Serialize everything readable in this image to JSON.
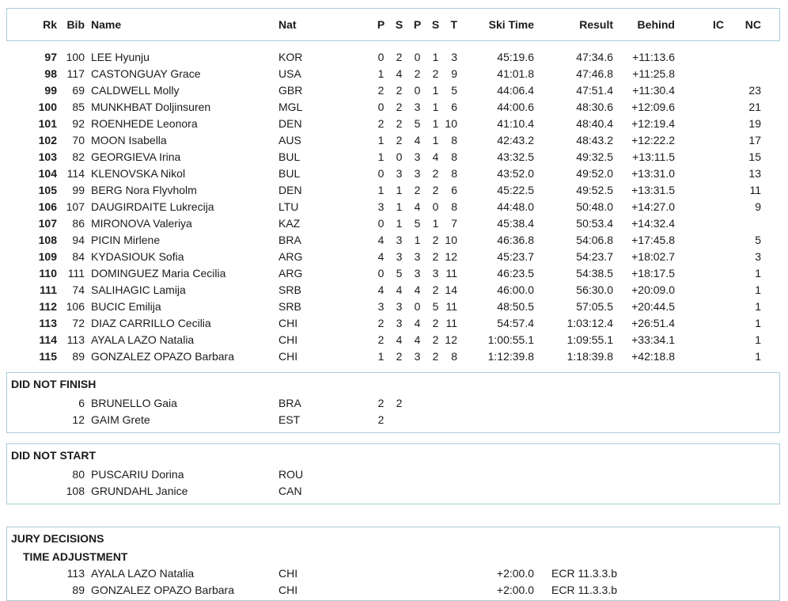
{
  "colors": {
    "border": "#a9cdd9",
    "text": "#1b1b1b"
  },
  "table": {
    "headers": {
      "rk": "Rk",
      "bib": "Bib",
      "name": "Name",
      "nat": "Nat",
      "p1": "P",
      "s1": "S",
      "p2": "P",
      "s2": "S",
      "t": "T",
      "ski_time": "Ski Time",
      "result": "Result",
      "behind": "Behind",
      "ic": "IC",
      "nc": "NC"
    },
    "rows": [
      {
        "rk": "97",
        "bib": "100",
        "name": "LEE Hyunju",
        "nat": "KOR",
        "p1": "0",
        "s1": "2",
        "p2": "0",
        "s2": "1",
        "t": "3",
        "ski_time": "45:19.6",
        "result": "47:34.6",
        "behind": "+11:13.6",
        "ic": "",
        "nc": ""
      },
      {
        "rk": "98",
        "bib": "117",
        "name": "CASTONGUAY Grace",
        "nat": "USA",
        "p1": "1",
        "s1": "4",
        "p2": "2",
        "s2": "2",
        "t": "9",
        "ski_time": "41:01.8",
        "result": "47:46.8",
        "behind": "+11:25.8",
        "ic": "",
        "nc": ""
      },
      {
        "rk": "99",
        "bib": "69",
        "name": "CALDWELL Molly",
        "nat": "GBR",
        "p1": "2",
        "s1": "2",
        "p2": "0",
        "s2": "1",
        "t": "5",
        "ski_time": "44:06.4",
        "result": "47:51.4",
        "behind": "+11:30.4",
        "ic": "",
        "nc": "23"
      },
      {
        "rk": "100",
        "bib": "85",
        "name": "MUNKHBAT Doljinsuren",
        "nat": "MGL",
        "p1": "0",
        "s1": "2",
        "p2": "3",
        "s2": "1",
        "t": "6",
        "ski_time": "44:00.6",
        "result": "48:30.6",
        "behind": "+12:09.6",
        "ic": "",
        "nc": "21"
      },
      {
        "rk": "101",
        "bib": "92",
        "name": "ROENHEDE Leonora",
        "nat": "DEN",
        "p1": "2",
        "s1": "2",
        "p2": "5",
        "s2": "1",
        "t": "10",
        "ski_time": "41:10.4",
        "result": "48:40.4",
        "behind": "+12:19.4",
        "ic": "",
        "nc": "19"
      },
      {
        "rk": "102",
        "bib": "70",
        "name": "MOON Isabella",
        "nat": "AUS",
        "p1": "1",
        "s1": "2",
        "p2": "4",
        "s2": "1",
        "t": "8",
        "ski_time": "42:43.2",
        "result": "48:43.2",
        "behind": "+12:22.2",
        "ic": "",
        "nc": "17"
      },
      {
        "rk": "103",
        "bib": "82",
        "name": "GEORGIEVA Irina",
        "nat": "BUL",
        "p1": "1",
        "s1": "0",
        "p2": "3",
        "s2": "4",
        "t": "8",
        "ski_time": "43:32.5",
        "result": "49:32.5",
        "behind": "+13:11.5",
        "ic": "",
        "nc": "15"
      },
      {
        "rk": "104",
        "bib": "114",
        "name": "KLENOVSKA Nikol",
        "nat": "BUL",
        "p1": "0",
        "s1": "3",
        "p2": "3",
        "s2": "2",
        "t": "8",
        "ski_time": "43:52.0",
        "result": "49:52.0",
        "behind": "+13:31.0",
        "ic": "",
        "nc": "13"
      },
      {
        "rk": "105",
        "bib": "99",
        "name": "BERG Nora Flyvholm",
        "nat": "DEN",
        "p1": "1",
        "s1": "1",
        "p2": "2",
        "s2": "2",
        "t": "6",
        "ski_time": "45:22.5",
        "result": "49:52.5",
        "behind": "+13:31.5",
        "ic": "",
        "nc": "11"
      },
      {
        "rk": "106",
        "bib": "107",
        "name": "DAUGIRDAITE Lukrecija",
        "nat": "LTU",
        "p1": "3",
        "s1": "1",
        "p2": "4",
        "s2": "0",
        "t": "8",
        "ski_time": "44:48.0",
        "result": "50:48.0",
        "behind": "+14:27.0",
        "ic": "",
        "nc": "9"
      },
      {
        "rk": "107",
        "bib": "86",
        "name": "MIRONOVA Valeriya",
        "nat": "KAZ",
        "p1": "0",
        "s1": "1",
        "p2": "5",
        "s2": "1",
        "t": "7",
        "ski_time": "45:38.4",
        "result": "50:53.4",
        "behind": "+14:32.4",
        "ic": "",
        "nc": ""
      },
      {
        "rk": "108",
        "bib": "94",
        "name": "PICIN Mirlene",
        "nat": "BRA",
        "p1": "4",
        "s1": "3",
        "p2": "1",
        "s2": "2",
        "t": "10",
        "ski_time": "46:36.8",
        "result": "54:06.8",
        "behind": "+17:45.8",
        "ic": "",
        "nc": "5"
      },
      {
        "rk": "109",
        "bib": "84",
        "name": "KYDASIOUK Sofia",
        "nat": "ARG",
        "p1": "4",
        "s1": "3",
        "p2": "3",
        "s2": "2",
        "t": "12",
        "ski_time": "45:23.7",
        "result": "54:23.7",
        "behind": "+18:02.7",
        "ic": "",
        "nc": "3"
      },
      {
        "rk": "110",
        "bib": "111",
        "name": "DOMINGUEZ Maria Cecilia",
        "nat": "ARG",
        "p1": "0",
        "s1": "5",
        "p2": "3",
        "s2": "3",
        "t": "11",
        "ski_time": "46:23.5",
        "result": "54:38.5",
        "behind": "+18:17.5",
        "ic": "",
        "nc": "1"
      },
      {
        "rk": "111",
        "bib": "74",
        "name": "SALIHAGIC Lamija",
        "nat": "SRB",
        "p1": "4",
        "s1": "4",
        "p2": "4",
        "s2": "2",
        "t": "14",
        "ski_time": "46:00.0",
        "result": "56:30.0",
        "behind": "+20:09.0",
        "ic": "",
        "nc": "1"
      },
      {
        "rk": "112",
        "bib": "106",
        "name": "BUCIC Emilija",
        "nat": "SRB",
        "p1": "3",
        "s1": "3",
        "p2": "0",
        "s2": "5",
        "t": "11",
        "ski_time": "48:50.5",
        "result": "57:05.5",
        "behind": "+20:44.5",
        "ic": "",
        "nc": "1"
      },
      {
        "rk": "113",
        "bib": "72",
        "name": "DIAZ CARRILLO Cecilia",
        "nat": "CHI",
        "p1": "2",
        "s1": "3",
        "p2": "4",
        "s2": "2",
        "t": "11",
        "ski_time": "54:57.4",
        "result": "1:03:12.4",
        "behind": "+26:51.4",
        "ic": "",
        "nc": "1"
      },
      {
        "rk": "114",
        "bib": "113",
        "name": "AYALA LAZO Natalia",
        "nat": "CHI",
        "p1": "2",
        "s1": "4",
        "p2": "4",
        "s2": "2",
        "t": "12",
        "ski_time": "1:00:55.1",
        "result": "1:09:55.1",
        "behind": "+33:34.1",
        "ic": "",
        "nc": "1"
      },
      {
        "rk": "115",
        "bib": "89",
        "name": "GONZALEZ OPAZO Barbara",
        "nat": "CHI",
        "p1": "1",
        "s1": "2",
        "p2": "3",
        "s2": "2",
        "t": "8",
        "ski_time": "1:12:39.8",
        "result": "1:18:39.8",
        "behind": "+42:18.8",
        "ic": "",
        "nc": "1"
      }
    ]
  },
  "did_not_finish": {
    "title": "DID NOT FINISH",
    "rows": [
      {
        "bib": "6",
        "name": "BRUNELLO Gaia",
        "nat": "BRA",
        "p1": "2",
        "s1": "2"
      },
      {
        "bib": "12",
        "name": "GAIM Grete",
        "nat": "EST",
        "p1": "2",
        "s1": ""
      }
    ]
  },
  "did_not_start": {
    "title": "DID NOT START",
    "rows": [
      {
        "bib": "80",
        "name": "PUSCARIU Dorina",
        "nat": "ROU"
      },
      {
        "bib": "108",
        "name": "GRUNDAHL Janice",
        "nat": "CAN"
      }
    ]
  },
  "jury_decisions": {
    "title": "JURY DECISIONS",
    "subtitle": "TIME ADJUSTMENT",
    "rows": [
      {
        "bib": "113",
        "name": "AYALA LAZO Natalia",
        "nat": "CHI",
        "adjustment": "+2:00.0",
        "rule": "ECR 11.3.3.b"
      },
      {
        "bib": "89",
        "name": "GONZALEZ OPAZO Barbara",
        "nat": "CHI",
        "adjustment": "+2:00.0",
        "rule": "ECR 11.3.3.b"
      }
    ]
  }
}
